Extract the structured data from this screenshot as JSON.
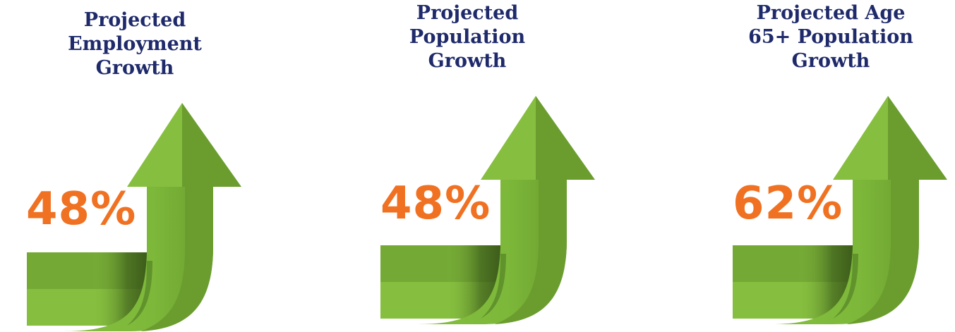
{
  "colors": {
    "title": "#1f2a6b",
    "value": "#f07122",
    "arrow_light": "#86bf3f",
    "arrow_mid": "#74a935",
    "arrow_dark": "#4f7a23"
  },
  "metrics": [
    {
      "title_lines": [
        "Projected",
        "Employment",
        "Growth"
      ],
      "value": "48%",
      "icon": "up-arrow-icon"
    },
    {
      "title_lines": [
        "Projected",
        "Population",
        "Growth"
      ],
      "value": "48%",
      "icon": "up-arrow-icon"
    },
    {
      "title_lines": [
        "Projected Age",
        "65+ Population",
        "Growth"
      ],
      "value": "62%",
      "icon": "up-arrow-icon"
    }
  ]
}
